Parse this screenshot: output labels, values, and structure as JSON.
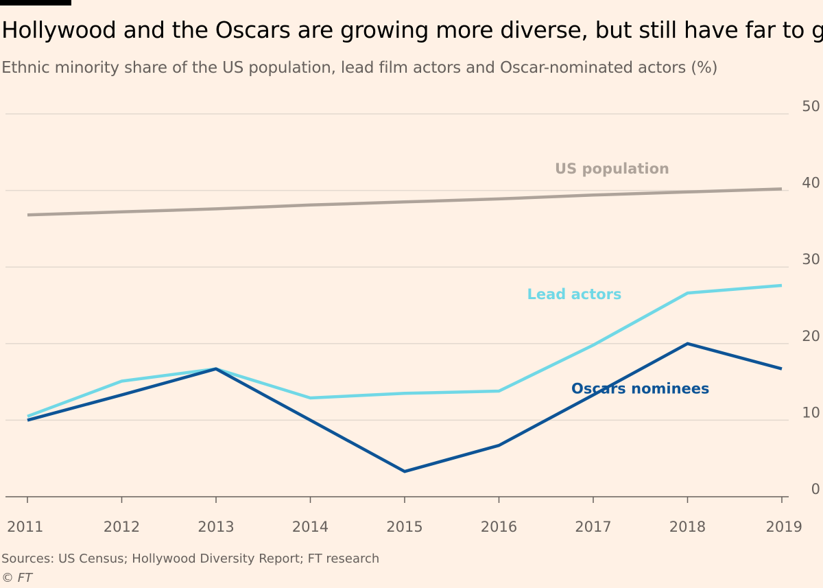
{
  "header": {
    "title": "Hollywood and the Oscars are growing more diverse, but still have far to go",
    "subtitle": "Ethnic minority share of the US population, lead film actors and Oscar-nominated actors (%)"
  },
  "footer": {
    "source": "Sources: US Census; Hollywood Diversity Report; FT research",
    "credit": "© FT"
  },
  "colors": {
    "background": "#fff1e5",
    "gridline": "#e3d9cf",
    "axis": "#66605c",
    "us_population": "#aea39a",
    "lead_actors": "#70d8e6",
    "oscars_nominees": "#0d5496"
  },
  "chart_data": {
    "type": "line",
    "title": "Hollywood and the Oscars are growing more diverse, but still have far to go",
    "subtitle": "Ethnic minority share of the US population, lead film actors and Oscar-nominated actors (%)",
    "xlabel": "",
    "ylabel": "",
    "x": [
      2011,
      2012,
      2013,
      2014,
      2015,
      2016,
      2017,
      2018,
      2019
    ],
    "x_tick_labels": [
      "2011",
      "2012",
      "2013",
      "2014",
      "2015",
      "2016",
      "2017",
      "2018",
      "2019"
    ],
    "ylim": [
      0,
      50
    ],
    "y_ticks": [
      0,
      10,
      20,
      30,
      40,
      50
    ],
    "y_tick_labels": [
      "0",
      "10",
      "20",
      "30",
      "40",
      "50"
    ],
    "y_axis_side": "right",
    "grid": true,
    "series": [
      {
        "key": "us_population",
        "name": "US population",
        "color": "#aea39a",
        "values": [
          36.8,
          37.2,
          37.6,
          38.1,
          38.5,
          38.9,
          39.4,
          39.8,
          40.2
        ]
      },
      {
        "key": "lead_actors",
        "name": "Lead actors",
        "color": "#70d8e6",
        "values": [
          10.5,
          15.1,
          16.7,
          12.9,
          13.5,
          13.8,
          19.8,
          26.6,
          27.6
        ]
      },
      {
        "key": "oscars_nominees",
        "name": "Oscars nominees",
        "color": "#0d5496",
        "values": [
          10.0,
          13.3,
          16.7,
          10.0,
          3.3,
          6.7,
          13.3,
          20.0,
          16.7
        ]
      }
    ],
    "annotations": [
      {
        "series": "us_population",
        "text": "US population",
        "near_x": 2017.2,
        "near_y": 42.2
      },
      {
        "series": "lead_actors",
        "text": "Lead actors",
        "near_x": 2016.8,
        "near_y": 25.8
      },
      {
        "series": "oscars_nominees",
        "text": "Oscars nominees",
        "near_x": 2017.5,
        "near_y": 13.5
      }
    ]
  }
}
